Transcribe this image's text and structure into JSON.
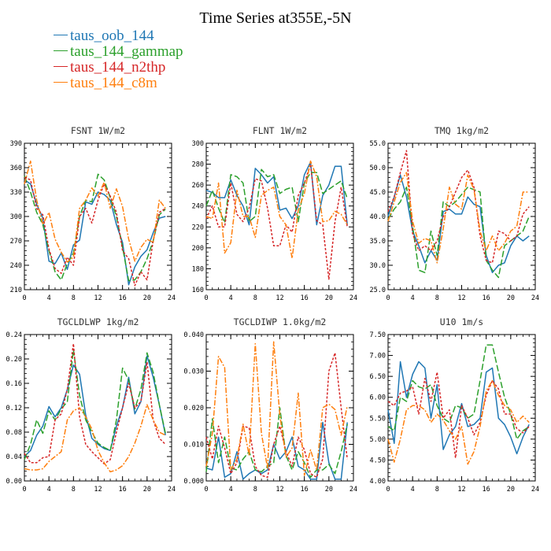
{
  "title": "Time Series at355E,-5N",
  "legend": [
    {
      "name": "taus_oob_144",
      "color": "#1f77b4"
    },
    {
      "name": "taus_144_gammap",
      "color": "#2ca02c"
    },
    {
      "name": "taus_144_n2thp",
      "color": "#d62728"
    },
    {
      "name": "taus_144_c8m",
      "color": "#ff7f0e"
    }
  ],
  "chart_data": [
    {
      "type": "line",
      "title": "FSNT   1W/m2",
      "xlim": [
        0,
        24
      ],
      "xticks": [
        0,
        4,
        8,
        12,
        16,
        20,
        24
      ],
      "ylim": [
        210,
        390
      ],
      "yticks": [
        210,
        240,
        270,
        300,
        330,
        360,
        390
      ],
      "ytick_labels": [
        "210",
        "240",
        "270",
        "300",
        "330",
        "360",
        "390"
      ],
      "x": [
        0,
        1,
        2,
        3,
        4,
        5,
        6,
        7,
        8,
        9,
        10,
        11,
        12,
        13,
        14,
        15,
        16,
        17,
        18,
        19,
        20,
        21,
        22,
        23
      ],
      "series": [
        {
          "name": "taus_oob_144",
          "values": [
            345,
            340,
            315,
            298,
            245,
            242,
            255,
            235,
            265,
            271,
            318,
            315,
            330,
            327,
            320,
            290,
            268,
            216,
            238,
            251,
            259,
            280,
            298,
            300
          ]
        },
        {
          "name": "taus_144_gammap",
          "values": [
            350,
            330,
            305,
            290,
            258,
            232,
            222,
            242,
            255,
            300,
            320,
            318,
            352,
            345,
            323,
            300,
            262,
            221,
            222,
            232,
            248,
            270,
            302,
            309
          ]
        },
        {
          "name": "taus_144_n2thp",
          "values": [
            348,
            345,
            310,
            302,
            260,
            236,
            230,
            250,
            240,
            300,
            310,
            292,
            320,
            340,
            325,
            305,
            258,
            248,
            215,
            232,
            222,
            270,
            305,
            310
          ]
        },
        {
          "name": "taus_144_c8m",
          "values": [
            340,
            368,
            320,
            290,
            305,
            272,
            256,
            244,
            250,
            310,
            320,
            335,
            325,
            342,
            310,
            334,
            312,
            272,
            245,
            262,
            272,
            268,
            320,
            310
          ]
        }
      ]
    },
    {
      "type": "line",
      "title": "FLNT   1W/m2",
      "xlim": [
        0,
        24
      ],
      "xticks": [
        0,
        4,
        8,
        12,
        16,
        20,
        24
      ],
      "ylim": [
        160,
        300
      ],
      "yticks": [
        160,
        180,
        200,
        220,
        240,
        260,
        280,
        300
      ],
      "ytick_labels": [
        "160",
        "180",
        "200",
        "220",
        "240",
        "260",
        "280",
        "300"
      ],
      "x": [
        0,
        1,
        2,
        3,
        4,
        5,
        6,
        7,
        8,
        9,
        10,
        11,
        12,
        13,
        14,
        15,
        16,
        17,
        18,
        19,
        20,
        21,
        22,
        23
      ],
      "series": [
        {
          "name": "taus_oob_144",
          "values": [
            255,
            253,
            248,
            248,
            265,
            250,
            240,
            222,
            276,
            270,
            262,
            268,
            236,
            238,
            228,
            240,
            270,
            282,
            222,
            250,
            260,
            278,
            278,
            222
          ]
        },
        {
          "name": "taus_144_gammap",
          "values": [
            240,
            255,
            238,
            224,
            270,
            268,
            262,
            225,
            230,
            275,
            268,
            270,
            252,
            256,
            258,
            225,
            262,
            272,
            272,
            252,
            256,
            260,
            264,
            247
          ]
        },
        {
          "name": "taus_144_n2thp",
          "values": [
            228,
            240,
            220,
            220,
            262,
            232,
            225,
            238,
            266,
            264,
            238,
            202,
            202,
            222,
            215,
            250,
            262,
            280,
            226,
            222,
            170,
            225,
            258,
            220
          ]
        },
        {
          "name": "taus_144_c8m",
          "values": [
            230,
            228,
            262,
            195,
            205,
            255,
            230,
            230,
            210,
            250,
            255,
            258,
            230,
            222,
            190,
            236,
            252,
            283,
            268,
            225,
            226,
            235,
            232,
            222
          ]
        }
      ]
    },
    {
      "type": "line",
      "title": "TMQ   1kg/m2",
      "xlim": [
        0,
        24
      ],
      "xticks": [
        0,
        4,
        8,
        12,
        16,
        20,
        24
      ],
      "ylim": [
        25,
        55
      ],
      "yticks": [
        25,
        30,
        35,
        40,
        45,
        50,
        55
      ],
      "ytick_labels": [
        "25.0",
        "30.0",
        "35.0",
        "40.0",
        "45.0",
        "50.0",
        "55.0"
      ],
      "x": [
        0,
        1,
        2,
        3,
        4,
        5,
        6,
        7,
        8,
        9,
        10,
        11,
        12,
        13,
        14,
        15,
        16,
        17,
        18,
        19,
        20,
        21,
        22,
        23
      ],
      "series": [
        {
          "name": "taus_oob_144",
          "values": [
            40,
            44,
            48.5,
            44,
            37,
            34,
            30.5,
            33,
            31,
            41,
            41.5,
            40.5,
            40.5,
            44,
            42.5,
            42,
            32,
            28.5,
            30,
            30.5,
            34,
            36,
            35,
            36
          ]
        },
        {
          "name": "taus_144_gammap",
          "values": [
            39.5,
            41.5,
            43,
            46,
            38,
            29,
            28.5,
            37,
            32,
            43,
            42,
            43,
            44.5,
            46,
            45.5,
            45,
            31,
            29,
            27.5,
            34,
            35,
            36,
            37,
            40
          ]
        },
        {
          "name": "taus_144_n2thp",
          "values": [
            41,
            44,
            49,
            53.5,
            36.5,
            33,
            34,
            33,
            35,
            40,
            42,
            45,
            48,
            49.5,
            46,
            36,
            31,
            30.5,
            37,
            36.5,
            35,
            36,
            40.5,
            42
          ]
        },
        {
          "name": "taus_144_c8m",
          "values": [
            39,
            43,
            47,
            49,
            39,
            34.5,
            35.5,
            35,
            30.5,
            37.5,
            46,
            42.5,
            41.5,
            48.5,
            45.5,
            37,
            33,
            36,
            33,
            34.5,
            37,
            38,
            45,
            45
          ]
        }
      ]
    },
    {
      "type": "line",
      "title": "TGCLDLWP   1kg/m2",
      "xlim": [
        0,
        24
      ],
      "xticks": [
        0,
        4,
        8,
        12,
        16,
        20,
        24
      ],
      "ylim": [
        0,
        0.24
      ],
      "yticks": [
        0,
        0.04,
        0.08,
        0.12,
        0.16,
        0.2,
        0.24
      ],
      "ytick_labels": [
        "0.00",
        "0.04",
        "0.08",
        "0.12",
        "0.16",
        "0.20",
        "0.24"
      ],
      "x": [
        0,
        1,
        2,
        3,
        4,
        5,
        6,
        7,
        8,
        9,
        10,
        11,
        12,
        13,
        14,
        15,
        16,
        17,
        18,
        19,
        20,
        21,
        22,
        23
      ],
      "series": [
        {
          "name": "taus_oob_144",
          "values": [
            0.04,
            0.05,
            0.075,
            0.09,
            0.122,
            0.105,
            0.12,
            0.15,
            0.19,
            0.175,
            0.108,
            0.07,
            0.06,
            0.053,
            0.05,
            0.09,
            0.12,
            0.17,
            0.11,
            0.13,
            0.205,
            0.17,
            0.125,
            0.075
          ]
        },
        {
          "name": "taus_144_gammap",
          "values": [
            0.035,
            0.06,
            0.1,
            0.078,
            0.115,
            0.1,
            0.118,
            0.13,
            0.215,
            0.14,
            0.1,
            0.08,
            0.062,
            0.055,
            0.05,
            0.1,
            0.185,
            0.165,
            0.118,
            0.15,
            0.21,
            0.178,
            0.125,
            0.078
          ]
        },
        {
          "name": "taus_144_n2thp",
          "values": [
            0.045,
            0.03,
            0.03,
            0.038,
            0.04,
            0.1,
            0.11,
            0.15,
            0.225,
            0.105,
            0.06,
            0.048,
            0.038,
            0.028,
            0.035,
            0.08,
            0.12,
            0.16,
            0.12,
            0.13,
            0.195,
            0.1,
            0.07,
            0.06
          ]
        },
        {
          "name": "taus_144_c8m",
          "values": [
            0.02,
            0.018,
            0.018,
            0.02,
            0.032,
            0.04,
            0.048,
            0.1,
            0.115,
            0.12,
            0.105,
            0.085,
            0.05,
            0.03,
            0.015,
            0.018,
            0.025,
            0.04,
            0.062,
            0.09,
            0.125,
            0.1,
            0.08,
            0.075
          ]
        }
      ]
    },
    {
      "type": "line",
      "title": "TGCLDIWP   1.0kg/m2",
      "xlim": [
        0,
        24
      ],
      "xticks": [
        0,
        4,
        8,
        12,
        16,
        20,
        24
      ],
      "ylim": [
        0,
        0.04
      ],
      "yticks": [
        0,
        0.01,
        0.02,
        0.03,
        0.04
      ],
      "ytick_labels": [
        "0.000",
        "0.010",
        "0.020",
        "0.030",
        "0.040"
      ],
      "x": [
        0,
        1,
        2,
        3,
        4,
        5,
        6,
        7,
        8,
        9,
        10,
        11,
        12,
        13,
        14,
        15,
        16,
        17,
        18,
        19,
        20,
        21,
        22,
        23
      ],
      "series": [
        {
          "name": "taus_oob_144",
          "values": [
            0.0035,
            0.003,
            0.012,
            0.001,
            0.002,
            0.008,
            0.0005,
            0.002,
            0.003,
            0.002,
            0.003,
            0.01,
            0.006,
            0.008,
            0.012,
            0.004,
            0.003,
            0.0005,
            0.0005,
            0.016,
            0.005,
            0.0005,
            0.0005,
            0.016
          ]
        },
        {
          "name": "taus_144_gammap",
          "values": [
            0.0025,
            0.017,
            0.005,
            0.012,
            0.0035,
            0.003,
            0.006,
            0.008,
            0.003,
            0.0025,
            0.004,
            0.005,
            0.02,
            0.007,
            0.003,
            0.008,
            0.005,
            0.001,
            0.003,
            0.003,
            0.0045,
            0.002,
            0.008,
            0.0155
          ]
        },
        {
          "name": "taus_144_n2thp",
          "values": [
            0.012,
            0.006,
            0.015,
            0.009,
            0.002,
            0.005,
            0.015,
            0.0145,
            0.004,
            0.0015,
            0.001,
            0.01,
            0.015,
            0.008,
            0.004,
            0.012,
            0.0085,
            0.002,
            0.001,
            0.006,
            0.03,
            0.035,
            0.02,
            0.006
          ]
        },
        {
          "name": "taus_144_c8m",
          "values": [
            0.004,
            0.013,
            0.034,
            0.031,
            0.003,
            0.006,
            0.0155,
            0.007,
            0.0375,
            0.013,
            0.0035,
            0.038,
            0.018,
            0.0065,
            0.009,
            0.024,
            0.0015,
            0.0085,
            0.003,
            0.02,
            0.021,
            0.0195,
            0.0125,
            0.0205
          ]
        }
      ]
    },
    {
      "type": "line",
      "title": "U10   1m/s",
      "xlim": [
        0,
        24
      ],
      "xticks": [
        0,
        4,
        8,
        12,
        16,
        20,
        24
      ],
      "ylim": [
        4,
        7.5
      ],
      "yticks": [
        4,
        4.5,
        5,
        5.5,
        6,
        6.5,
        7,
        7.5
      ],
      "ytick_labels": [
        "4.00",
        "4.50",
        "5.00",
        "5.50",
        "6.00",
        "6.50",
        "7.00",
        "7.50"
      ],
      "x": [
        0,
        1,
        2,
        3,
        4,
        5,
        6,
        7,
        8,
        9,
        10,
        11,
        12,
        13,
        14,
        15,
        16,
        17,
        18,
        19,
        20,
        21,
        22,
        23
      ],
      "series": [
        {
          "name": "taus_oob_144",
          "values": [
            5.7,
            4.9,
            6.85,
            6.0,
            6.55,
            6.85,
            6.7,
            5.5,
            6.3,
            4.75,
            5.1,
            5.3,
            5.85,
            5.3,
            5.35,
            5.5,
            6.6,
            6.7,
            5.5,
            5.35,
            5.05,
            4.65,
            5.05,
            5.35
          ]
        },
        {
          "name": "taus_144_gammap",
          "values": [
            5.3,
            5.2,
            6.0,
            5.9,
            6.4,
            6.25,
            6.2,
            6.3,
            5.8,
            5.5,
            5.4,
            5.8,
            5.75,
            5.5,
            5.6,
            6.4,
            7.25,
            7.25,
            6.6,
            6.0,
            5.6,
            5.0,
            5.2,
            5.3
          ]
        },
        {
          "name": "taus_144_n2thp",
          "values": [
            5.9,
            5.8,
            6.1,
            6.15,
            6.25,
            5.6,
            6.45,
            5.9,
            6.6,
            5.5,
            5.7,
            4.55,
            5.8,
            5.5,
            5.1,
            5.4,
            6.05,
            6.4,
            6.2,
            5.6,
            5.6,
            5.25,
            5.15,
            5.3
          ]
        },
        {
          "name": "taus_144_c8m",
          "values": [
            5.0,
            4.45,
            5.0,
            5.7,
            5.8,
            5.8,
            5.7,
            5.4,
            5.6,
            5.45,
            5.2,
            5.0,
            5.3,
            4.4,
            4.7,
            5.3,
            6.15,
            6.4,
            6.05,
            5.8,
            5.7,
            5.4,
            5.55,
            5.4
          ]
        }
      ]
    }
  ]
}
